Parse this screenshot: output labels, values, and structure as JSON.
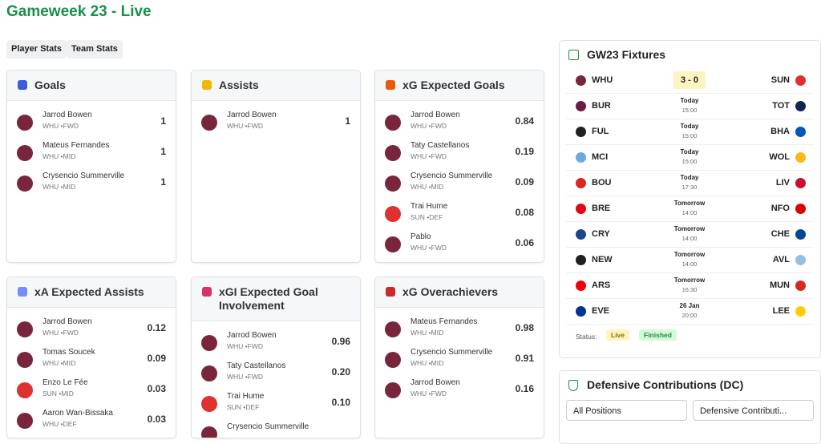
{
  "header": {
    "title": "Gameweek 23 - Live"
  },
  "tabs": [
    "Player Stats",
    "Team Stats"
  ],
  "cards": [
    {
      "title": "Goals",
      "icon": "#3b5bdb",
      "players": [
        {
          "name": "Jarrod Bowen",
          "team": "WHU",
          "position": "FWD",
          "value": "1",
          "color": "#7a263a"
        },
        {
          "name": "Mateus Fernandes",
          "team": "WHU",
          "position": "MID",
          "value": "1",
          "color": "#7a263a"
        },
        {
          "name": "Crysencio Summerville",
          "team": "WHU",
          "position": "MID",
          "value": "1",
          "color": "#7a263a"
        }
      ]
    },
    {
      "title": "Assists",
      "icon": "#f2b705",
      "players": [
        {
          "name": "Jarrod Bowen",
          "team": "WHU",
          "position": "FWD",
          "value": "1",
          "color": "#7a263a"
        }
      ]
    },
    {
      "title": "xG Expected Goals",
      "icon": "#e8590c",
      "players": [
        {
          "name": "Jarrod Bowen",
          "team": "WHU",
          "position": "FWD",
          "value": "0.84",
          "color": "#7a263a"
        },
        {
          "name": "Taty Castellanos",
          "team": "WHU",
          "position": "FWD",
          "value": "0.19",
          "color": "#7a263a"
        },
        {
          "name": "Crysencio Summerville",
          "team": "WHU",
          "position": "MID",
          "value": "0.09",
          "color": "#7a263a"
        },
        {
          "name": "Trai Hume",
          "team": "SUN",
          "position": "DEF",
          "value": "0.08",
          "color": "#e03131"
        },
        {
          "name": "Pablo",
          "team": "WHU",
          "position": "FWD",
          "value": "0.06",
          "color": "#7a263a"
        }
      ]
    },
    {
      "title": "xA Expected Assists",
      "icon": "#748ffc",
      "players": [
        {
          "name": "Jarrod Bowen",
          "team": "WHU",
          "position": "FWD",
          "value": "0.12",
          "color": "#7a263a"
        },
        {
          "name": "Tomas Soucek",
          "team": "WHU",
          "position": "MID",
          "value": "0.09",
          "color": "#7a263a"
        },
        {
          "name": "Enzo Le Fée",
          "team": "SUN",
          "position": "MID",
          "value": "0.03",
          "color": "#e03131"
        },
        {
          "name": "Aaron Wan-Bissaka",
          "team": "WHU",
          "position": "DEF",
          "value": "0.03",
          "color": "#7a263a"
        }
      ]
    },
    {
      "title": "xGI Expected Goal Involvement",
      "icon": "#d6336c",
      "players": [
        {
          "name": "Jarrod Bowen",
          "team": "WHU",
          "position": "FWD",
          "value": "0.96",
          "color": "#7a263a"
        },
        {
          "name": "Taty Castellanos",
          "team": "WHU",
          "position": "FWD",
          "value": "0.20",
          "color": "#7a263a"
        },
        {
          "name": "Trai Hume",
          "team": "SUN",
          "position": "DEF",
          "value": "0.10",
          "color": "#e03131"
        },
        {
          "name": "Crysencio Summerville",
          "color": "#7a263a"
        }
      ]
    },
    {
      "title": "xG Overachievers",
      "icon": "#c92a2a",
      "players": [
        {
          "name": "Mateus Fernandes",
          "team": "WHU",
          "position": "MID",
          "value": "0.98",
          "color": "#7a263a"
        },
        {
          "name": "Crysencio Summerville",
          "team": "WHU",
          "position": "MID",
          "value": "0.91",
          "color": "#7a263a"
        },
        {
          "name": "Jarrod Bowen",
          "team": "WHU",
          "position": "FWD",
          "value": "0.16",
          "color": "#7a263a"
        }
      ]
    }
  ],
  "fixtures": {
    "title": "GW23 Fixtures",
    "matches": [
      {
        "home": "WHU",
        "away": "SUN",
        "score": "3 - 0"
      },
      {
        "home": "BUR",
        "away": "TOT",
        "day": "Today",
        "time": "15:00"
      },
      {
        "home": "FUL",
        "away": "BHA",
        "day": "Today",
        "time": "15:00"
      },
      {
        "home": "MCI",
        "away": "WOL",
        "day": "Today",
        "time": "15:00"
      },
      {
        "home": "BOU",
        "away": "LIV",
        "day": "Today",
        "time": "17:30"
      },
      {
        "home": "BRE",
        "away": "NFO",
        "day": "Tomorrow",
        "time": "14:00"
      },
      {
        "home": "CRY",
        "away": "CHE",
        "day": "Tomorrow",
        "time": "14:00"
      },
      {
        "home": "NEW",
        "away": "AVL",
        "day": "Tomorrow",
        "time": "14:00"
      },
      {
        "home": "ARS",
        "away": "MUN",
        "day": "Tomorrow",
        "time": "16:30"
      },
      {
        "home": "EVE",
        "away": "LEE",
        "day": "26 Jan",
        "time": "20:00"
      }
    ],
    "status_label": "Status:",
    "legend": [
      "Live",
      "Finished"
    ]
  },
  "dc": {
    "title": "Defensive Contributions (DC)",
    "selects": [
      "All Positions",
      "Defensive Contributi..."
    ]
  }
}
